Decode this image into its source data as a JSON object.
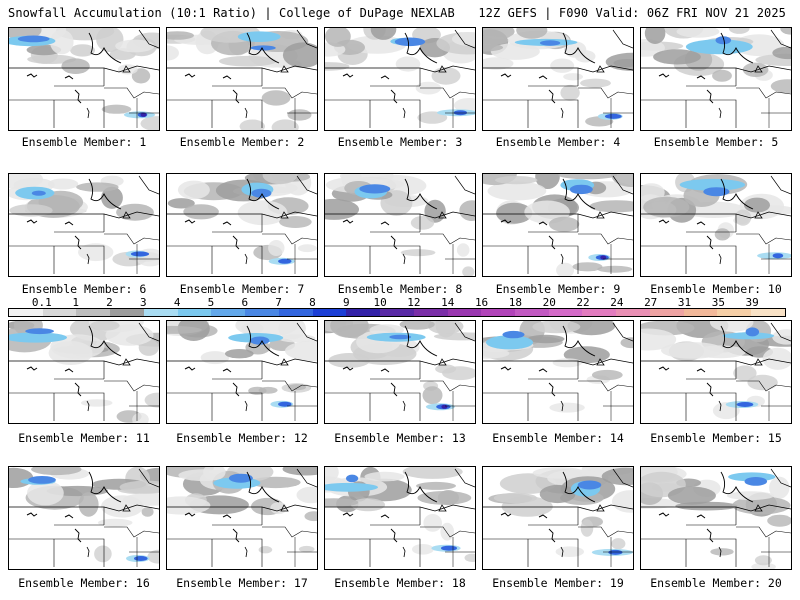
{
  "header": {
    "title_left": "Snowfall Accumulation (10:1 Ratio) | College of DuPage NEXLAB",
    "title_right": "12Z GEFS | F090 Valid: 06Z FRI NOV 21 2025"
  },
  "colorbar": {
    "labels": [
      "0.1",
      "1",
      "2",
      "3",
      "4",
      "5",
      "6",
      "7",
      "8",
      "9",
      "10",
      "12",
      "14",
      "16",
      "18",
      "20",
      "22",
      "24",
      "27",
      "31",
      "35",
      "39"
    ],
    "colors": [
      "#f2f2f2",
      "#d8d8d8",
      "#bdbdbd",
      "#9c9c9c",
      "#a9dcf2",
      "#7cc9ef",
      "#63a8ea",
      "#4a87e4",
      "#3366df",
      "#1c3fd6",
      "#3322a8",
      "#5a2aa6",
      "#7b2fa8",
      "#9a37b0",
      "#b144b9",
      "#c25ac2",
      "#d46bc8",
      "#e27cbf",
      "#e98fb4",
      "#eea3a3",
      "#f2b89a",
      "#f6cfa7",
      "#f9e2c6"
    ]
  },
  "panels": [
    {
      "label": "Ensemble Member: 1"
    },
    {
      "label": "Ensemble Member: 2"
    },
    {
      "label": "Ensemble Member: 3"
    },
    {
      "label": "Ensemble Member: 4"
    },
    {
      "label": "Ensemble Member: 5"
    },
    {
      "label": "Ensemble Member: 6"
    },
    {
      "label": "Ensemble Member: 7"
    },
    {
      "label": "Ensemble Member: 8"
    },
    {
      "label": "Ensemble Member: 9"
    },
    {
      "label": "Ensemble Member: 10"
    },
    {
      "label": "Ensemble Member: 11"
    },
    {
      "label": "Ensemble Member: 12"
    },
    {
      "label": "Ensemble Member: 13"
    },
    {
      "label": "Ensemble Member: 14"
    },
    {
      "label": "Ensemble Member: 15"
    },
    {
      "label": "Ensemble Member: 16"
    },
    {
      "label": "Ensemble Member: 17"
    },
    {
      "label": "Ensemble Member: 18"
    },
    {
      "label": "Ensemble Member: 19"
    },
    {
      "label": "Ensemble Member: 20"
    }
  ]
}
